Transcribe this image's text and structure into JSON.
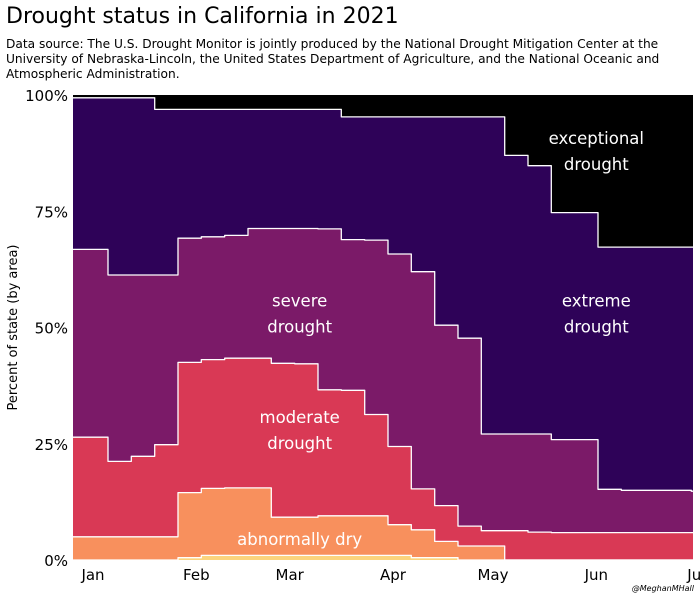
{
  "chart_data": {
    "type": "area",
    "title": "Drought status in California in 2021",
    "subtitle": "Data source: The U.S. Drought Monitor is jointly produced by the National Drought Mitigation Center at the University of Nebraska-Lincoln, the United States Department of Agriculture, and the National Oceanic and Atmospheric Administration.",
    "ylabel": "Percent of state (by area)",
    "xlabel": "",
    "credit": "@MeghanMHall",
    "ylim": [
      0,
      100
    ],
    "yticks": [
      0,
      25,
      50,
      75,
      100
    ],
    "ytick_labels": [
      "0%",
      "25%",
      "50%",
      "75%",
      "100%"
    ],
    "xlim": [
      "2021-01-01",
      "2021-07-06"
    ],
    "xticks": [
      "2021-01-07",
      "2021-02-07",
      "2021-03-07",
      "2021-04-07",
      "2021-05-07",
      "2021-06-07",
      "2021-07-07"
    ],
    "xtick_labels": [
      "Jan",
      "Feb",
      "Mar",
      "Apr",
      "May",
      "Jun",
      "Jul"
    ],
    "stacked": true,
    "grid": false,
    "dates": [
      "2021-01-05",
      "2021-01-12",
      "2021-01-19",
      "2021-01-26",
      "2021-02-02",
      "2021-02-09",
      "2021-02-16",
      "2021-02-23",
      "2021-03-02",
      "2021-03-09",
      "2021-03-16",
      "2021-03-23",
      "2021-03-30",
      "2021-04-06",
      "2021-04-13",
      "2021-04-20",
      "2021-04-27",
      "2021-05-04",
      "2021-05-11",
      "2021-05-18",
      "2021-05-25",
      "2021-06-01",
      "2021-06-08",
      "2021-06-15",
      "2021-06-22",
      "2021-06-29",
      "2021-07-06"
    ],
    "series": [
      {
        "name": "",
        "color": "#fbd47e",
        "values": [
          0,
          0,
          0,
          0,
          0.5,
          1,
          1,
          1,
          1,
          1,
          1,
          1,
          1,
          1,
          0.5,
          0.5,
          0,
          0,
          0,
          0,
          0,
          0,
          0,
          0,
          0,
          0,
          0
        ]
      },
      {
        "name": "abnormally dry",
        "color": "#f8905d",
        "values": [
          5,
          5,
          5,
          5,
          14.5,
          15.4,
          15.5,
          15.5,
          9.2,
          9.2,
          9.5,
          9.5,
          9.5,
          7.6,
          6.5,
          4,
          3,
          3,
          0,
          0,
          0,
          0,
          0,
          0,
          0,
          0,
          0
        ]
      },
      {
        "name": "moderate drought",
        "color": "#d93955",
        "values": [
          26.4,
          21.2,
          22.3,
          24.8,
          42.5,
          43.1,
          43.4,
          43.4,
          42.3,
          42.2,
          36.6,
          36.5,
          31.3,
          24.4,
          15.3,
          11.7,
          7.3,
          6.3,
          6.3,
          6,
          5.9,
          5.9,
          5.9,
          5.9,
          5.9,
          5.9,
          5.9
        ]
      },
      {
        "name": "severe drought",
        "color": "#7b1a68",
        "values": [
          66.8,
          61.3,
          61.3,
          61.3,
          69.2,
          69.5,
          69.8,
          71.3,
          71.3,
          71.3,
          71.2,
          68.9,
          68.8,
          65.8,
          62,
          50.5,
          47.7,
          27.1,
          27.1,
          27.1,
          25.9,
          25.9,
          15.2,
          15,
          15,
          15,
          14.8
        ]
      },
      {
        "name": "extreme drought",
        "color": "#2e0258",
        "values": [
          99.4,
          99.4,
          99.4,
          96.9,
          96.9,
          96.9,
          96.9,
          96.9,
          96.9,
          96.9,
          96.9,
          95.3,
          95.3,
          95.3,
          95.3,
          95.3,
          95.3,
          95.3,
          87,
          84.8,
          74.7,
          74.7,
          67.3,
          67.3,
          67.3,
          67.3,
          67.3
        ]
      },
      {
        "name": "exceptional drought",
        "color": "#000000",
        "values": [
          100,
          100,
          100,
          100,
          100,
          100,
          100,
          100,
          100,
          100,
          100,
          100,
          100,
          100,
          100,
          100,
          100,
          100,
          100,
          100,
          100,
          100,
          100,
          100,
          100,
          100,
          100
        ]
      }
    ],
    "annotations": [
      {
        "lines": [
          "exceptional",
          "drought"
        ],
        "date": "2021-06-07",
        "y": 88,
        "color": "#ffffff"
      },
      {
        "lines": [
          "extreme",
          "drought"
        ],
        "date": "2021-06-07",
        "y": 53,
        "color": "#ffffff"
      },
      {
        "lines": [
          "severe",
          "drought"
        ],
        "date": "2021-03-10",
        "y": 53,
        "color": "#ffffff"
      },
      {
        "lines": [
          "moderate",
          "drought"
        ],
        "date": "2021-03-10",
        "y": 28,
        "color": "#ffffff"
      },
      {
        "lines": [
          "abnormally dry"
        ],
        "date": "2021-03-10",
        "y": 4.5,
        "color": "#ffffff"
      }
    ]
  }
}
